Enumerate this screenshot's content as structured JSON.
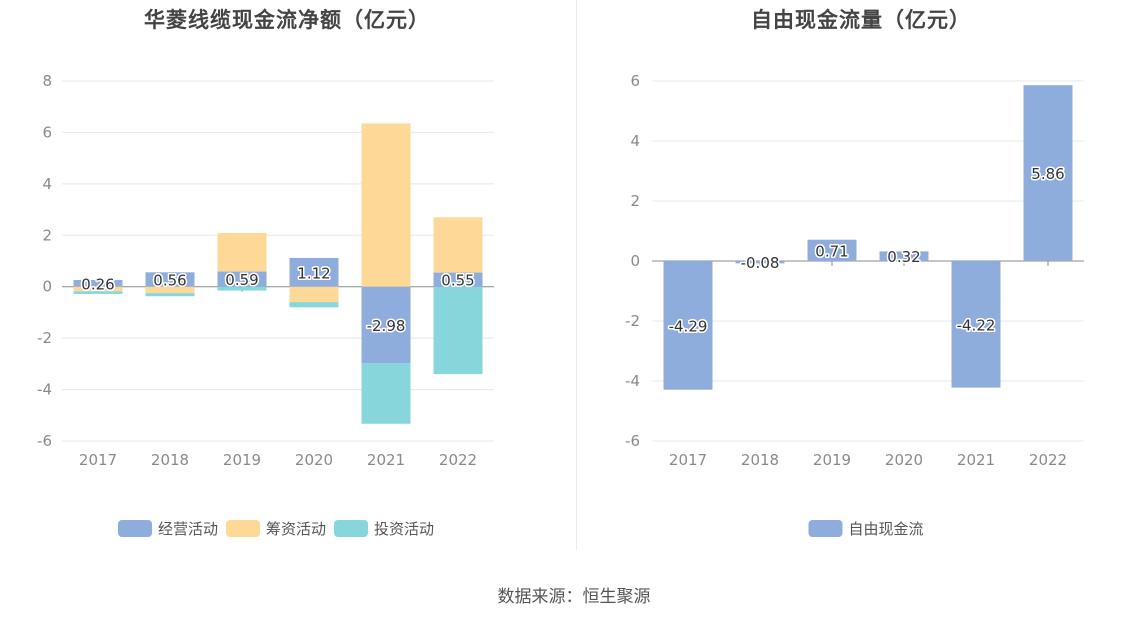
{
  "source_text": "数据来源：恒生聚源",
  "colors": {
    "operating": "#8eaddc",
    "financing": "#fed897",
    "investing": "#86d6dc",
    "free_cash_flow": "#8eaddc",
    "grid": "#e6e8ee",
    "zero_line": "#8c8c8c"
  },
  "chart_data": [
    {
      "type": "bar",
      "stacked": true,
      "title": "华菱线缆现金流净额（亿元）",
      "categories": [
        "2017",
        "2018",
        "2019",
        "2020",
        "2021",
        "2022"
      ],
      "ylim": [
        -6,
        8
      ],
      "yticks": [
        "8",
        "6",
        "4",
        "2",
        "0",
        "-2",
        "-4",
        "-6"
      ],
      "grid": true,
      "legend_position": "bottom",
      "series": [
        {
          "name": "经营活动",
          "values": [
            0.26,
            0.56,
            0.59,
            1.12,
            -2.98,
            0.55
          ],
          "labels": [
            "0.26",
            "0.56",
            "0.59",
            "1.12",
            "-2.98",
            "0.55"
          ]
        },
        {
          "name": "筹资活动",
          "values": [
            -0.18,
            -0.25,
            1.5,
            -0.6,
            6.35,
            2.15
          ]
        },
        {
          "name": "投资活动",
          "values": [
            -0.1,
            -0.12,
            -0.15,
            -0.2,
            -2.35,
            -3.4
          ]
        }
      ]
    },
    {
      "type": "bar",
      "title": "自由现金流量（亿元）",
      "categories": [
        "2017",
        "2018",
        "2019",
        "2020",
        "2021",
        "2022"
      ],
      "ylim": [
        -6,
        6
      ],
      "yticks": [
        "6",
        "4",
        "2",
        "0",
        "-2",
        "-4",
        "-6"
      ],
      "grid": true,
      "legend_position": "bottom",
      "series": [
        {
          "name": "自由现金流",
          "values": [
            -4.29,
            -0.08,
            0.71,
            0.32,
            -4.22,
            5.86
          ],
          "labels": [
            "-4.29",
            "-0.08",
            "0.71",
            "0.32",
            "-4.22",
            "5.86"
          ]
        }
      ]
    }
  ]
}
